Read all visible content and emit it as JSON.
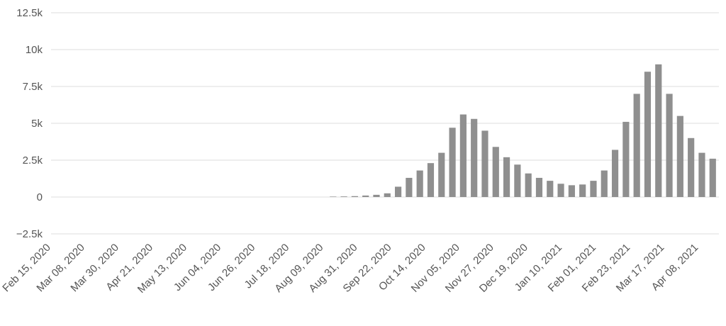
{
  "chart_data": {
    "type": "bar",
    "title": "",
    "xlabel": "",
    "ylabel": "",
    "ylim": [
      -2500,
      12500
    ],
    "y_ticks": [
      {
        "value": 12500,
        "label": "12.5k"
      },
      {
        "value": 10000,
        "label": "10k"
      },
      {
        "value": 7500,
        "label": "7.5k"
      },
      {
        "value": 5000,
        "label": "5k"
      },
      {
        "value": 2500,
        "label": "2.5k"
      },
      {
        "value": 0,
        "label": "0"
      },
      {
        "value": -2500,
        "label": "−2.5k"
      }
    ],
    "x_range": [
      "2020-02-15",
      "2021-04-21"
    ],
    "x_ticks": [
      "Feb 15, 2020",
      "Mar 08, 2020",
      "Mar 30, 2020",
      "Apr 21, 2020",
      "May 13, 2020",
      "Jun 04, 2020",
      "Jun 26, 2020",
      "Jul 18, 2020",
      "Aug 09, 2020",
      "Aug 31, 2020",
      "Sep 22, 2020",
      "Oct 14, 2020",
      "Nov 05, 2020",
      "Nov 27, 2020",
      "Dec 19, 2020",
      "Jan 10, 2021",
      "Feb 01, 2021",
      "Feb 23, 2021",
      "Mar 17, 2021",
      "Apr 08, 2021"
    ],
    "grid": true,
    "legend": "none",
    "bar_color": "#8f8f8f",
    "series": [
      {
        "start_date": "2020-02-15",
        "interval_days": 7,
        "values": [
          0,
          0,
          0,
          0,
          0,
          0,
          0,
          0,
          0,
          0,
          0,
          0,
          0,
          0,
          0,
          0,
          0,
          0,
          0,
          0,
          0,
          0,
          0,
          0,
          0,
          0,
          30,
          40,
          60,
          100,
          150,
          250,
          700,
          1300,
          1800,
          2300,
          3000,
          4700,
          5600,
          5300,
          4500,
          3400,
          2700,
          2200,
          1600,
          1300,
          1100,
          900,
          800,
          850,
          1100,
          1800,
          3200,
          5100,
          7000,
          8500,
          9000,
          7000,
          5500,
          4000,
          3000,
          2600
        ]
      }
    ]
  }
}
